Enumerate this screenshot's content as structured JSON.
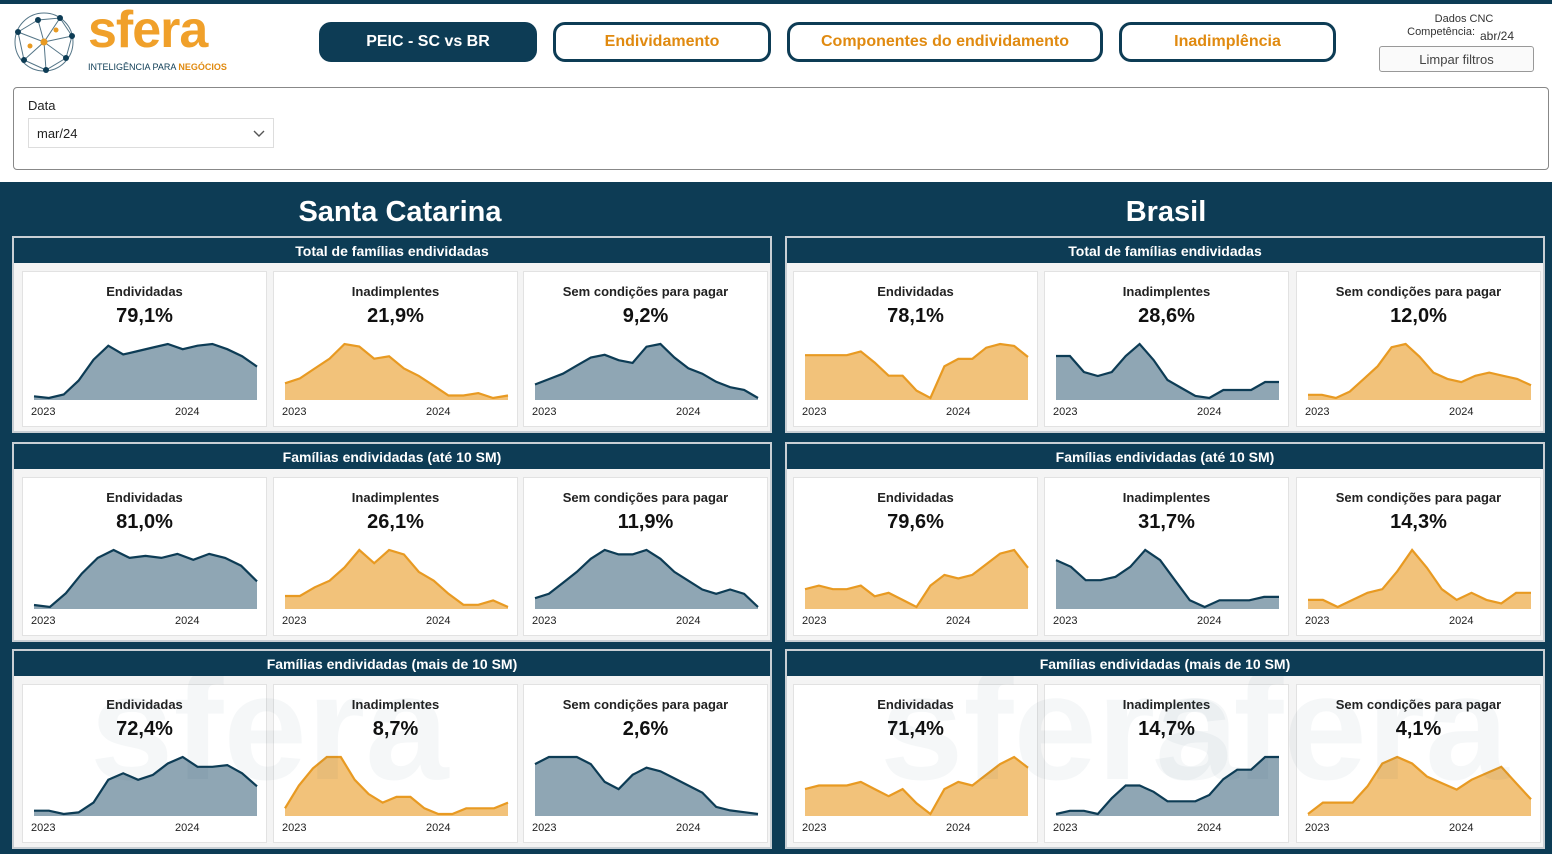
{
  "logo": {
    "word": "sfera",
    "tag_main": "INTELIGÊNCIA PARA ",
    "tag_accent": "NEGÓCIOS"
  },
  "nav": {
    "tab1": "PEIC - SC vs BR",
    "tab2": "Endividamento",
    "tab3": "Componentes do endividamento",
    "tab4": "Inadimplência"
  },
  "source": {
    "line1": "Dados CNC",
    "line2": "Competência:",
    "value": "abr/24"
  },
  "clear_filters": "Limpar filtros",
  "filter": {
    "label": "Data",
    "value": "mar/24"
  },
  "regions": {
    "left": "Santa Catarina",
    "right": "Brasil"
  },
  "group_titles": {
    "g1": "Total de famílias endividadas",
    "g2": "Famílias endividadas (até 10 SM)",
    "g3": "Famílias endividadas (mais de 10 SM)"
  },
  "metric_labels": {
    "m1": "Endividadas",
    "m2": "Inadimplentes",
    "m3": "Sem condições para pagar"
  },
  "years": {
    "start": "2023",
    "end": "2024"
  },
  "colors": {
    "navy": "#0d3c55",
    "orange": "#e89a22",
    "slate": "#8fa6b4"
  },
  "sc": {
    "g1": [
      {
        "value": "79,1%",
        "color": "navy",
        "series": [
          1,
          0,
          2,
          10,
          22,
          30,
          25,
          27,
          29,
          31,
          28,
          30,
          31,
          28,
          24,
          18
        ]
      },
      {
        "value": "21,9%",
        "color": "orange",
        "series": [
          6,
          8,
          12,
          16,
          22,
          21,
          16,
          17,
          12,
          9,
          5,
          1,
          1,
          2,
          0,
          1
        ]
      },
      {
        "value": "9,2%",
        "color": "navy",
        "series": [
          8,
          10,
          12,
          15,
          18,
          19,
          17,
          16,
          22,
          23,
          18,
          14,
          12,
          9,
          7,
          6,
          3
        ]
      }
    ],
    "g2": [
      {
        "value": "81,0%",
        "color": "navy",
        "series": [
          2,
          1,
          8,
          18,
          26,
          30,
          26,
          27,
          26,
          28,
          25,
          28,
          26,
          22,
          14
        ]
      },
      {
        "value": "26,1%",
        "color": "orange",
        "series": [
          5,
          5,
          9,
          12,
          18,
          26,
          20,
          26,
          24,
          16,
          12,
          6,
          1,
          1,
          3,
          0
        ]
      },
      {
        "value": "11,9%",
        "color": "navy",
        "series": [
          10,
          12,
          17,
          22,
          28,
          32,
          30,
          30,
          32,
          28,
          22,
          18,
          14,
          12,
          14,
          12,
          6
        ]
      }
    ],
    "g3": [
      {
        "value": "72,4%",
        "color": "navy",
        "series": [
          5,
          5,
          3,
          4,
          10,
          24,
          28,
          24,
          27,
          34,
          38,
          32,
          32,
          33,
          28,
          20
        ]
      },
      {
        "value": "8,7%",
        "color": "orange",
        "series": [
          10,
          18,
          24,
          28,
          28,
          20,
          15,
          12,
          14,
          14,
          10,
          8,
          8,
          10,
          10,
          10,
          12
        ]
      },
      {
        "value": "2,6%",
        "color": "navy",
        "series": [
          28,
          32,
          32,
          32,
          28,
          18,
          14,
          22,
          26,
          24,
          20,
          16,
          12,
          4,
          2,
          1,
          0
        ]
      }
    ]
  },
  "br": {
    "g1": [
      {
        "value": "78,1%",
        "color": "orange",
        "series": [
          26,
          26,
          26,
          26,
          28,
          22,
          15,
          15,
          7,
          3,
          20,
          24,
          24,
          30,
          32,
          31,
          25
        ]
      },
      {
        "value": "28,6%",
        "color": "navy",
        "series": [
          22,
          22,
          14,
          12,
          14,
          22,
          28,
          20,
          10,
          6,
          2,
          1,
          5,
          5,
          5,
          9,
          9
        ]
      },
      {
        "value": "12,0%",
        "color": "orange",
        "series": [
          0,
          0,
          -2,
          2,
          10,
          18,
          30,
          32,
          24,
          14,
          10,
          8,
          12,
          14,
          12,
          10,
          6
        ]
      }
    ],
    "g2": [
      {
        "value": "79,6%",
        "color": "orange",
        "series": [
          20,
          22,
          20,
          20,
          22,
          16,
          18,
          14,
          10,
          22,
          28,
          26,
          28,
          34,
          40,
          42,
          32
        ]
      },
      {
        "value": "31,7%",
        "color": "navy",
        "series": [
          28,
          24,
          16,
          16,
          18,
          24,
          34,
          28,
          16,
          4,
          0,
          4,
          4,
          4,
          6,
          6
        ]
      },
      {
        "value": "14,3%",
        "color": "orange",
        "series": [
          12,
          12,
          8,
          12,
          16,
          18,
          28,
          40,
          30,
          18,
          12,
          16,
          12,
          10,
          16,
          16
        ]
      }
    ],
    "g3": [
      {
        "value": "71,4%",
        "color": "orange",
        "series": [
          22,
          24,
          24,
          24,
          26,
          22,
          18,
          22,
          14,
          8,
          22,
          26,
          24,
          30,
          36,
          40,
          34
        ]
      },
      {
        "value": "14,7%",
        "color": "navy",
        "series": [
          2,
          4,
          4,
          2,
          12,
          20,
          20,
          16,
          10,
          10,
          10,
          14,
          24,
          30,
          30,
          38,
          38
        ]
      },
      {
        "value": "4,1%",
        "color": "orange",
        "series": [
          1,
          8,
          8,
          8,
          18,
          32,
          36,
          32,
          24,
          20,
          16,
          22,
          26,
          30,
          20,
          10
        ]
      }
    ]
  },
  "watermark": {
    "word": "sfera"
  }
}
